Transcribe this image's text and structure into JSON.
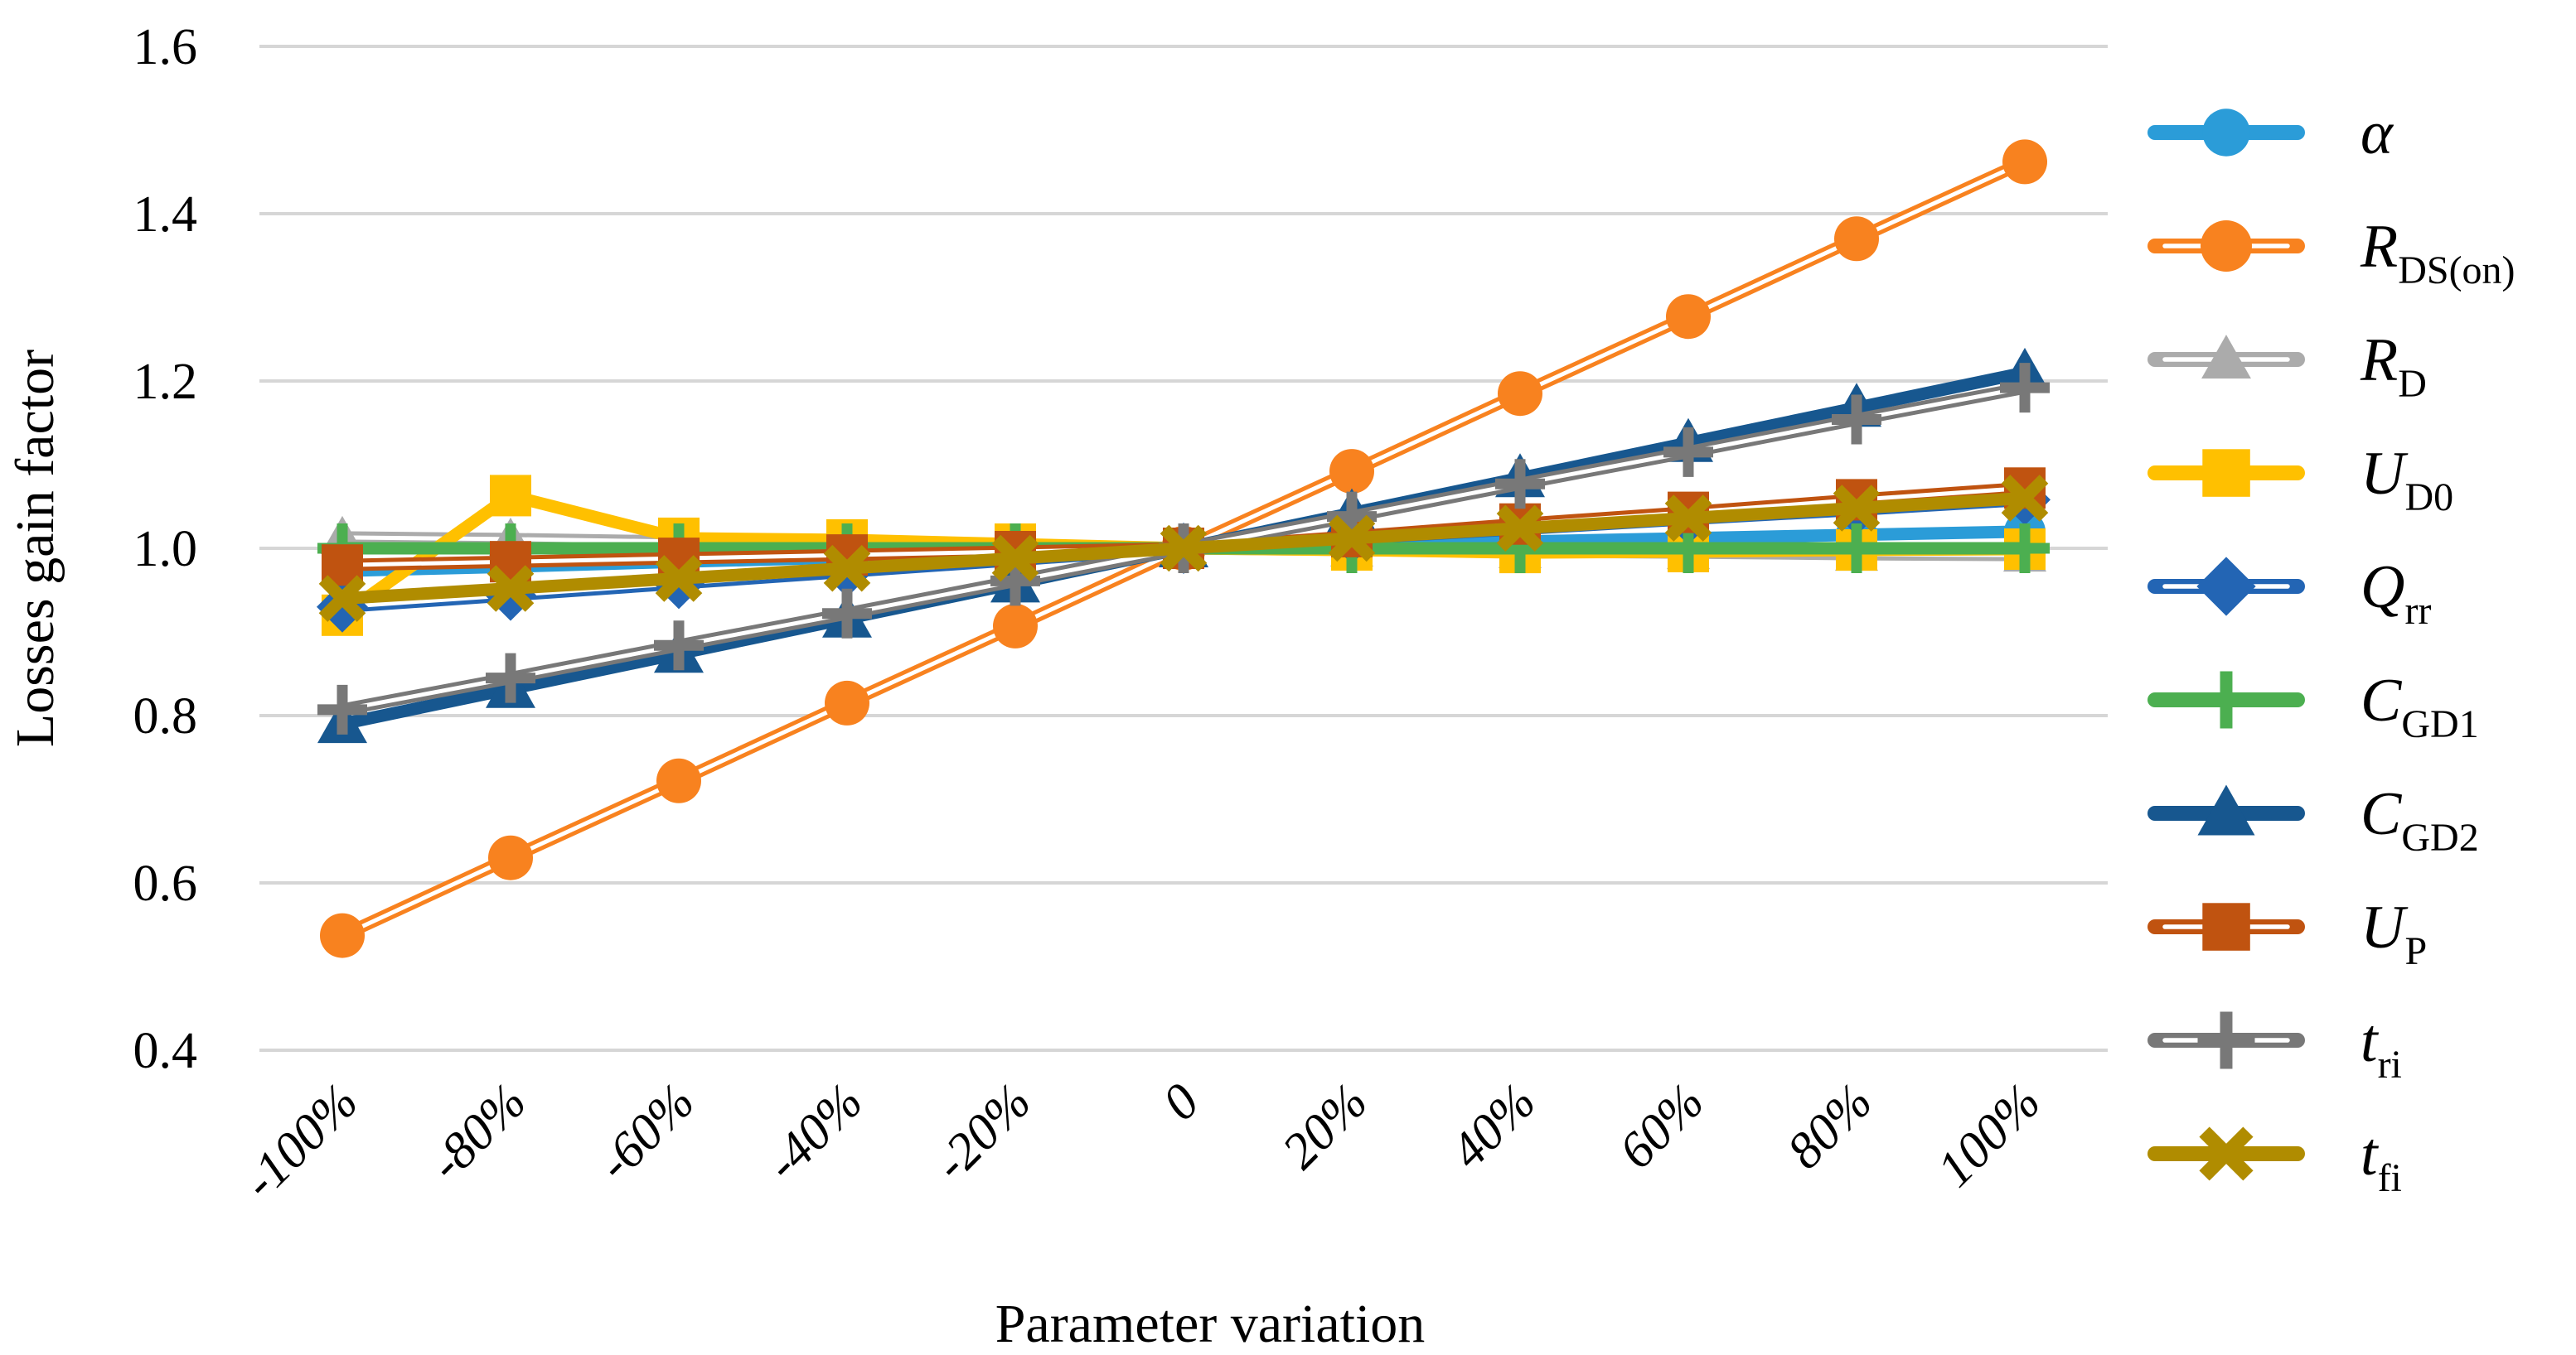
{
  "chart_data": {
    "type": "line",
    "title": "",
    "xlabel": "Parameter variation",
    "ylabel": "Losses gain factor",
    "x_tick_labels": [
      "-100%",
      "-80%",
      "-60%",
      "-40%",
      "-20%",
      "0",
      "20%",
      "40%",
      "60%",
      "80%",
      "100%"
    ],
    "x_values_percent": [
      -100,
      -80,
      -60,
      -40,
      -20,
      0,
      20,
      40,
      60,
      80,
      100
    ],
    "y_tick_labels": [
      "1.6",
      "1.4",
      "1.2",
      "1.0",
      "0.8",
      "0.6",
      "0.4"
    ],
    "y_ticks": [
      1.6,
      1.4,
      1.2,
      1.0,
      0.8,
      0.6,
      0.4
    ],
    "ylim": [
      0.4,
      1.6
    ],
    "grid": "horizontal",
    "gridline_color": "#D6D6D6",
    "legend_position": "right",
    "series": [
      {
        "name": "alpha",
        "label_main": "α",
        "label_sub": "",
        "color": "#2B9CD8",
        "line": "solid",
        "marker": "circle",
        "values": [
          0.973,
          0.978,
          0.984,
          0.989,
          0.995,
          1.0,
          1.004,
          1.008,
          1.012,
          1.016,
          1.02
        ]
      },
      {
        "name": "R_DSon",
        "label_main": "R",
        "label_sub": "DS(on)",
        "color": "#F8821F",
        "line": "double",
        "marker": "circle",
        "values": [
          0.537,
          0.63,
          0.722,
          0.815,
          0.907,
          1.0,
          1.092,
          1.185,
          1.277,
          1.37,
          1.462
        ]
      },
      {
        "name": "R_D",
        "label_main": "R",
        "label_sub": "D",
        "color": "#ABABAB",
        "line": "double",
        "marker": "triangle",
        "values": [
          1.013,
          1.011,
          1.008,
          1.006,
          1.003,
          1.0,
          0.998,
          0.996,
          0.995,
          0.993,
          0.992
        ]
      },
      {
        "name": "U_D0",
        "label_main": "U",
        "label_sub": "D0",
        "color": "#FFC000",
        "line": "solid",
        "marker": "square",
        "values": [
          0.92,
          1.063,
          1.012,
          1.01,
          1.005,
          1.0,
          0.998,
          0.995,
          0.996,
          0.998,
          0.999
        ]
      },
      {
        "name": "Q_rr",
        "label_main": "Q",
        "label_sub": "rr",
        "color": "#2365B4",
        "line": "double",
        "marker": "diamond",
        "values": [
          0.93,
          0.944,
          0.958,
          0.972,
          0.986,
          1.0,
          1.012,
          1.023,
          1.035,
          1.046,
          1.058
        ]
      },
      {
        "name": "C_GD1",
        "label_main": "C",
        "label_sub": "GD1",
        "color": "#4CAF50",
        "line": "solid",
        "marker": "plus",
        "values": [
          1.0,
          1.0,
          1.0,
          1.0,
          1.0,
          1.0,
          1.0,
          1.0,
          1.0,
          1.0,
          1.0
        ]
      },
      {
        "name": "C_GD2",
        "label_main": "C",
        "label_sub": "GD2",
        "color": "#17578F",
        "line": "solid",
        "marker": "triangle",
        "values": [
          0.79,
          0.832,
          0.874,
          0.916,
          0.958,
          1.0,
          1.042,
          1.084,
          1.126,
          1.168,
          1.21
        ]
      },
      {
        "name": "U_P",
        "label_main": "U",
        "label_sub": "P",
        "color": "#C05310",
        "line": "double",
        "marker": "square",
        "values": [
          0.98,
          0.984,
          0.988,
          0.992,
          0.996,
          1.0,
          1.014,
          1.029,
          1.043,
          1.058,
          1.072
        ]
      },
      {
        "name": "t_ri",
        "label_main": "t",
        "label_sub": "ri",
        "color": "#787878",
        "line": "double",
        "marker": "plus",
        "values": [
          0.807,
          0.845,
          0.884,
          0.922,
          0.961,
          1.0,
          1.038,
          1.077,
          1.115,
          1.154,
          1.192
        ]
      },
      {
        "name": "t_fi",
        "label_main": "t",
        "label_sub": "fi",
        "color": "#B08C00",
        "line": "solid",
        "marker": "x",
        "values": [
          0.94,
          0.952,
          0.964,
          0.976,
          0.988,
          1.0,
          1.012,
          1.024,
          1.036,
          1.048,
          1.06
        ]
      }
    ]
  }
}
